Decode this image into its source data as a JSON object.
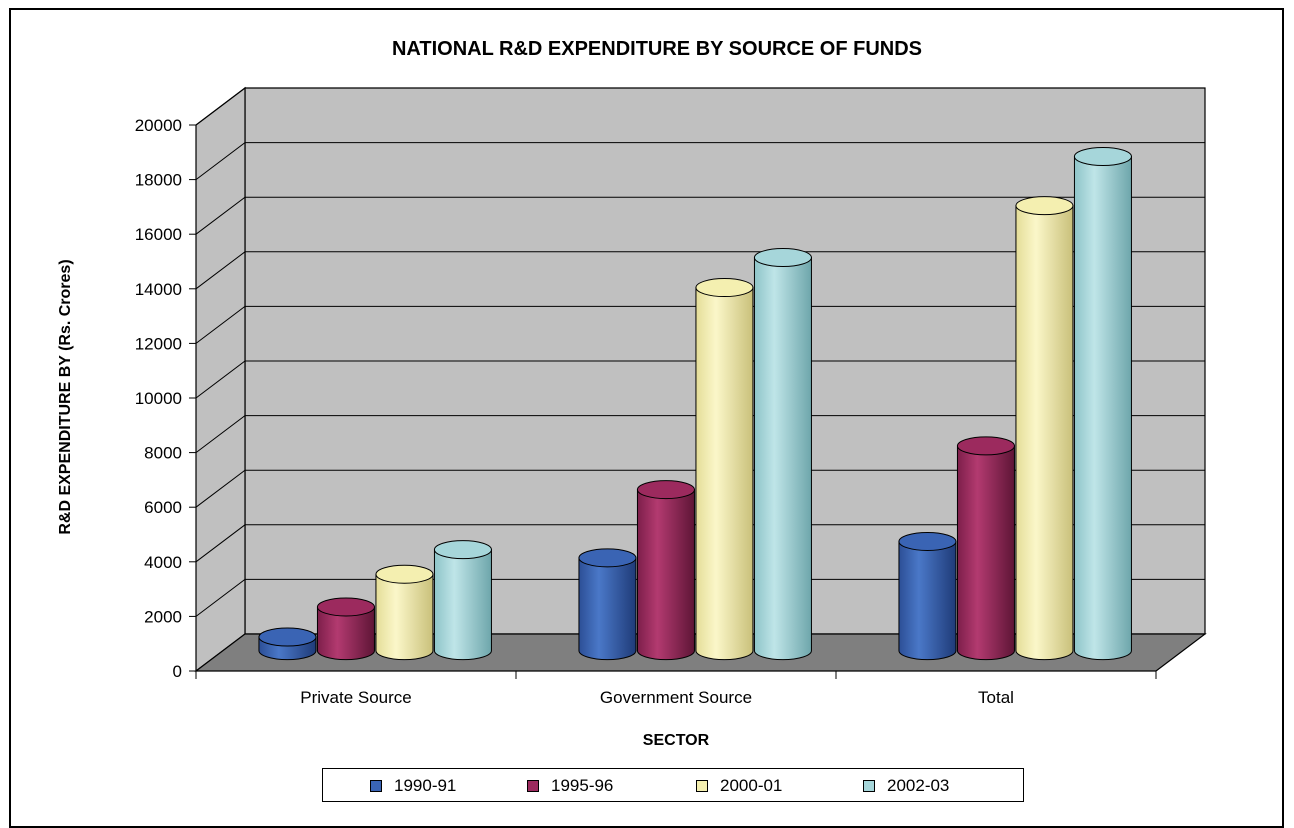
{
  "chart_data": {
    "type": "bar",
    "title": "NATIONAL R&D EXPENDITURE BY SOURCE OF FUNDS",
    "xlabel": "SECTOR",
    "ylabel": "R&D EXPENDITURE BY (Rs. Crores)",
    "categories": [
      "Private Source",
      "Government Source",
      "Total"
    ],
    "ylim": [
      0,
      20000
    ],
    "yticks": [
      "0",
      "2000",
      "4000",
      "6000",
      "8000",
      "10000",
      "12000",
      "14000",
      "16000",
      "18000",
      "20000"
    ],
    "series": [
      {
        "name": "1990-91",
        "values": [
          500,
          3400,
          4000
        ]
      },
      {
        "name": "1995-96",
        "values": [
          1600,
          5900,
          7500
        ]
      },
      {
        "name": "2000-01",
        "values": [
          2800,
          13300,
          16300
        ]
      },
      {
        "name": "2002-03",
        "values": [
          3700,
          14400,
          18100
        ]
      }
    ],
    "colors": [
      "#3a64b4",
      "#9c2a5e",
      "#f4efb0",
      "#a6d6da"
    ],
    "grid": true,
    "legend_position": "bottom"
  }
}
